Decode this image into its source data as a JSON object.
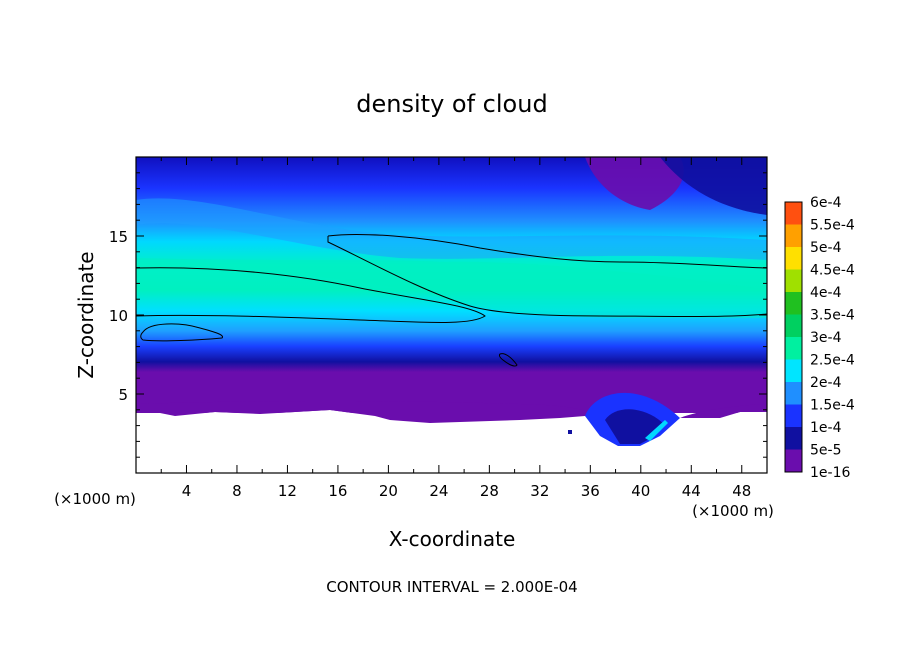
{
  "chart_data": {
    "type": "heatmap",
    "title": "density of cloud",
    "xlabel": "X-coordinate",
    "ylabel": "Z-coordinate",
    "x_unit_left": "(×1000 m)",
    "x_unit_right": "(×1000 m)",
    "footer": "CONTOUR INTERVAL = 2.000E-04",
    "xlim": [
      0,
      50
    ],
    "ylim": [
      0,
      20
    ],
    "x_ticks": [
      4,
      8,
      12,
      16,
      20,
      24,
      28,
      32,
      36,
      40,
      44,
      48
    ],
    "y_ticks": [
      5,
      10,
      15
    ],
    "grid": false,
    "colorbar": {
      "placement": "right",
      "levels": [
        "1e-16",
        "5e-5",
        "1e-4",
        "1.5e-4",
        "2e-4",
        "2.5e-4",
        "3e-4",
        "3.5e-4",
        "4e-4",
        "4.5e-4",
        "5e-4",
        "5.5e-4",
        "6e-4"
      ],
      "colors": [
        "#6a0dad",
        "#1010a0",
        "#1a33ff",
        "#1f8fff",
        "#00e5ff",
        "#00f0a0",
        "#00d060",
        "#20c020",
        "#a0e000",
        "#ffe000",
        "#ffa000",
        "#ff5010",
        "#ff2020",
        "#ff9090"
      ]
    },
    "contour_level": "2e-4",
    "field_profile_by_height": [
      {
        "z": 3.5,
        "value": "1e-16"
      },
      {
        "z": 4.5,
        "value": "5e-5"
      },
      {
        "z": 6,
        "value": "1e-4"
      },
      {
        "z": 8,
        "value": "1.5e-4"
      },
      {
        "z": 10,
        "value": "2e-4"
      },
      {
        "z": 12,
        "value": "2e-4"
      },
      {
        "z": 14,
        "value": "1.5e-4"
      },
      {
        "z": 16.5,
        "value": "1e-4"
      },
      {
        "z": 18.5,
        "value": "5e-5"
      }
    ]
  }
}
